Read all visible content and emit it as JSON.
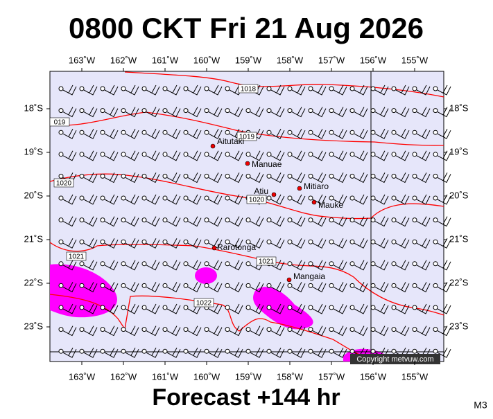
{
  "header": {
    "title": "0800 CKT Fri 21 Aug 2026"
  },
  "map": {
    "lon_ticks": [
      {
        "value": 163,
        "label": "163˚W"
      },
      {
        "value": 162,
        "label": "162˚W"
      },
      {
        "value": 161,
        "label": "161˚W"
      },
      {
        "value": 160,
        "label": "160˚W"
      },
      {
        "value": 159,
        "label": "159˚W"
      },
      {
        "value": 158,
        "label": "158˚W"
      },
      {
        "value": 157,
        "label": "157˚W"
      },
      {
        "value": 156,
        "label": "156˚W"
      },
      {
        "value": 155,
        "label": "155˚W"
      }
    ],
    "lat_ticks": [
      {
        "value": 18,
        "label": "18˚S"
      },
      {
        "value": 19,
        "label": "19˚S"
      },
      {
        "value": 20,
        "label": "20˚S"
      },
      {
        "value": 21,
        "label": "21˚S"
      },
      {
        "value": 22,
        "label": "22˚S"
      },
      {
        "value": 23,
        "label": "23˚S"
      }
    ],
    "isobar_labels": [
      "1018",
      "019",
      "1019",
      "1020",
      "1020",
      "1021",
      "1021",
      "1022"
    ],
    "islands": [
      "Aitutaki",
      "Manuae",
      "Atiu",
      "Mitiaro",
      "Mauke",
      "Rarotonga",
      "Mangaia"
    ],
    "copyright": "Copyright metvuw.com"
  },
  "footer": {
    "forecast": "Forecast +144 hr",
    "model": "M3"
  }
}
